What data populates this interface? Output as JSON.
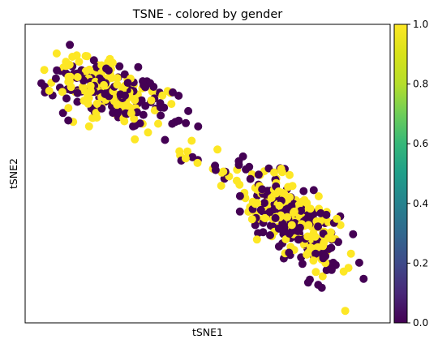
{
  "chart_data": {
    "type": "scatter",
    "title": "TSNE - colored by gender",
    "xlabel": "tSNE1",
    "ylabel": "tSNE2",
    "x_ticks": false,
    "y_ticks": false,
    "grid": false,
    "colormap": "viridis",
    "colorbar": {
      "range": [
        0.0,
        1.0
      ],
      "ticks": [
        "0.0",
        "0.2",
        "0.4",
        "0.6",
        "0.8",
        "1.0"
      ]
    },
    "color_values": [
      0,
      1
    ],
    "colors": {
      "0": "#440154",
      "1": "#fde725"
    },
    "clusters": [
      {
        "name": "upper-left",
        "center": [
          -0.55,
          0.55
        ],
        "n_points": 260
      },
      {
        "name": "lower-right",
        "center": [
          0.45,
          -0.35
        ],
        "n_points": 330
      },
      {
        "name": "bridge",
        "center": [
          -0.05,
          0.07
        ],
        "n_points": 14
      }
    ]
  }
}
